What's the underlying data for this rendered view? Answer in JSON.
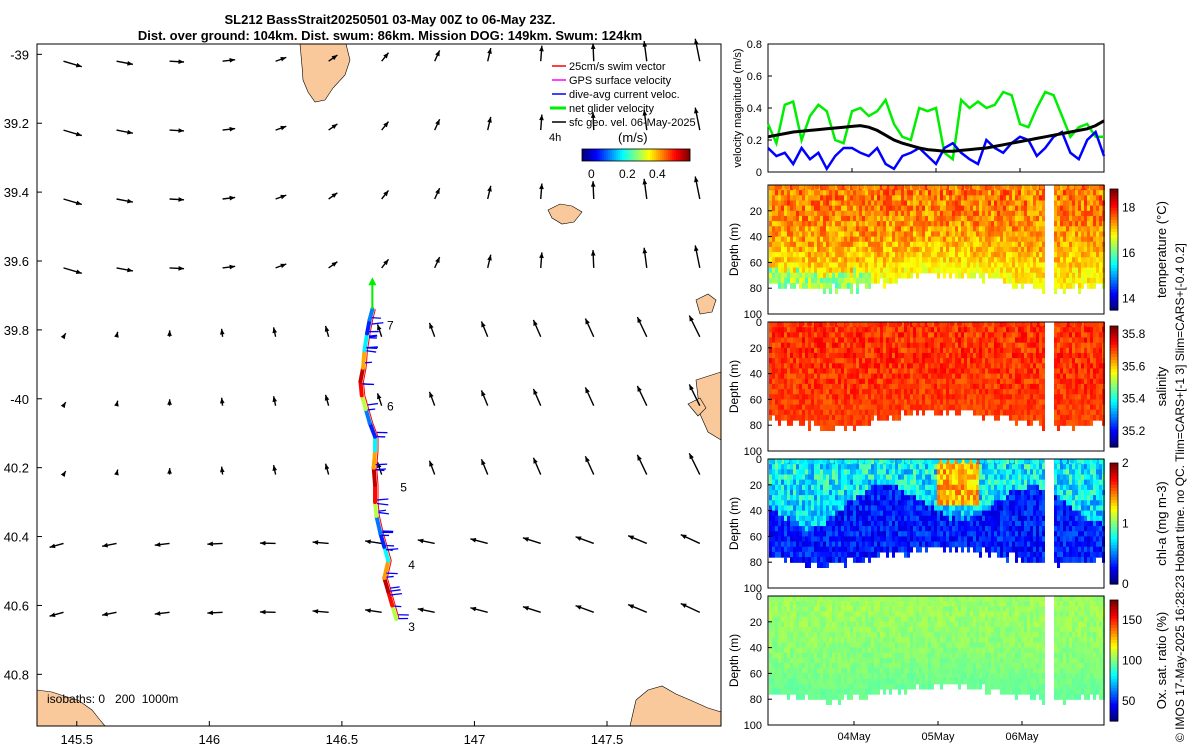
{
  "title_line1": "SL212 BassStrait20250501 03-May 00Z to 06-May 23Z.",
  "title_line2": "Dist. over ground: 104km. Dist. swum: 86km. Mission DOG: 149km. Swum: 124km",
  "side_note": "© IMOS 17-May-2025 16:28:23 Hobart time. no QC. Tlim=CARS+[-1 3] Slim=CARS+[-0.4 0.2]",
  "colors": {
    "land": "#f9c89b",
    "swim": "#ff0000",
    "gps": "#ff00ff",
    "dive": "#0000ff",
    "net": "#00ee00",
    "sfc": "#000000",
    "speed": "#000000"
  },
  "chart_data": [
    {
      "type": "scatter",
      "name": "map",
      "xlim": [
        145.35,
        147.93
      ],
      "ylim": [
        -40.95,
        -38.97
      ],
      "x_ticks": [
        145.5,
        146,
        146.5,
        147,
        147.5
      ],
      "x_tick_labels": [
        "145.5",
        "146",
        "146.5",
        "147",
        "147.5"
      ],
      "y_ticks": [
        -39,
        -39.2,
        -39.4,
        -39.6,
        -39.8,
        -40,
        -40.2,
        -40.4,
        -40.6,
        -40.8
      ],
      "y_tick_labels": [
        "-39",
        "39.2",
        "39.4",
        "39.6",
        "39.8",
        "-40",
        "40.2",
        "40.4",
        "40.6",
        "40.8"
      ],
      "legend": [
        "25cm/s swim vector",
        "GPS surface velocity",
        "dive-avg current veloc.",
        "net glider velocity",
        "sfc geo. vel. 06-May-2025"
      ],
      "legend_placement": "top-right",
      "colorbar_label": "(m/s)",
      "colorbar_extra": "4h",
      "colorbar_tick_labels": [
        "0",
        "0.2",
        "0.4"
      ],
      "isobaths_label": "isobaths: 0   200  1000m",
      "track_day_labels": [
        {
          "label": "3",
          "lon": 146.72,
          "lat": -40.645
        },
        {
          "label": "4",
          "lon": 146.72,
          "lat": -40.465
        },
        {
          "label": "5",
          "lon": 146.69,
          "lat": -40.24
        },
        {
          "label": "6",
          "lon": 146.64,
          "lat": -40.005
        },
        {
          "label": "7",
          "lon": 146.64,
          "lat": -39.77
        }
      ],
      "track": [
        [
          146.705,
          -40.64
        ],
        [
          146.69,
          -40.6
        ],
        [
          146.675,
          -40.56
        ],
        [
          146.66,
          -40.52
        ],
        [
          146.675,
          -40.47
        ],
        [
          146.66,
          -40.43
        ],
        [
          146.645,
          -40.39
        ],
        [
          146.63,
          -40.34
        ],
        [
          146.625,
          -40.3
        ],
        [
          146.625,
          -40.25
        ],
        [
          146.62,
          -40.2
        ],
        [
          146.625,
          -40.15
        ],
        [
          146.625,
          -40.11
        ],
        [
          146.605,
          -40.07
        ],
        [
          146.59,
          -40.03
        ],
        [
          146.575,
          -39.99
        ],
        [
          146.57,
          -39.95
        ],
        [
          146.58,
          -39.91
        ],
        [
          146.585,
          -39.86
        ],
        [
          146.595,
          -39.81
        ],
        [
          146.605,
          -39.77
        ],
        [
          146.615,
          -39.74
        ]
      ],
      "sfc_vectors": [
        {
          "lat": -39.0,
          "u": [
            0.35,
            0.35,
            0.25,
            0.2,
            0.0,
            -0.1,
            -0.2,
            -0.1,
            0.0,
            0.0,
            0.0,
            0.0,
            0.0
          ]
        },
        {
          "lat": -39.2,
          "u": [
            0.4,
            0.35,
            0.3,
            0.2,
            0.1,
            0.0,
            0.0,
            0.0,
            0.0,
            0.0,
            0.0,
            0.0,
            0.0
          ]
        },
        {
          "lat": -39.4,
          "u": [
            0.25,
            0.2,
            0.15,
            0.1,
            0.0,
            -0.1,
            -0.15,
            -0.2,
            0.0,
            0.0,
            0.0,
            0.0,
            0.0
          ]
        },
        {
          "lat": -39.6,
          "u": [
            0.2,
            0.15,
            0.1,
            0.0,
            -0.1,
            -0.15,
            -0.1,
            -0.05,
            0.0,
            0.0,
            0.0,
            0.0,
            0.0
          ]
        },
        {
          "lat": -39.8,
          "u": [
            0.05,
            0.0,
            0.0,
            0.0,
            0.0,
            0.0,
            0.0,
            0.0,
            0.0,
            0.0,
            0.0,
            0.0,
            0.0
          ]
        }
      ]
    },
    {
      "type": "line",
      "name": "velocity_magnitude",
      "ylabel": "velocity magnitude (m/s)",
      "ylim": [
        0,
        0.8
      ],
      "y_ticks": [
        0,
        0.2,
        0.4,
        0.6,
        0.8
      ],
      "y_tick_labels": [
        "0",
        "0.2",
        "0.4",
        "0.6",
        "0.8"
      ],
      "x_days": [
        3.0,
        3.1,
        3.2,
        3.3,
        3.4,
        3.5,
        3.6,
        3.7,
        3.8,
        3.9,
        4.0,
        4.1,
        4.2,
        4.3,
        4.4,
        4.5,
        4.6,
        4.7,
        4.8,
        4.9,
        5.0,
        5.1,
        5.2,
        5.3,
        5.4,
        5.5,
        5.6,
        5.7,
        5.8,
        5.9,
        6.0,
        6.1,
        6.2,
        6.3,
        6.4,
        6.5,
        6.6,
        6.7,
        6.8,
        6.9,
        7.0
      ],
      "series": [
        {
          "name": "net glider velocity",
          "color": "#00ee00",
          "values": [
            0.3,
            0.18,
            0.42,
            0.44,
            0.2,
            0.35,
            0.42,
            0.38,
            0.2,
            0.18,
            0.38,
            0.4,
            0.35,
            0.38,
            0.45,
            0.3,
            0.22,
            0.2,
            0.4,
            0.38,
            0.4,
            0.12,
            0.08,
            0.45,
            0.4,
            0.44,
            0.4,
            0.42,
            0.5,
            0.48,
            0.3,
            0.28,
            0.4,
            0.5,
            0.48,
            0.35,
            0.22,
            0.28,
            0.3,
            0.22,
            0.22
          ]
        },
        {
          "name": "dive-avg current",
          "color": "#0000ff",
          "values": [
            0.15,
            0.1,
            0.12,
            0.05,
            0.15,
            0.08,
            0.12,
            0.02,
            0.1,
            0.15,
            0.15,
            0.12,
            0.1,
            0.15,
            0.05,
            0.02,
            0.1,
            0.12,
            0.15,
            0.1,
            0.05,
            0.15,
            0.18,
            0.12,
            0.08,
            0.05,
            0.2,
            0.15,
            0.12,
            0.18,
            0.22,
            0.2,
            0.1,
            0.15,
            0.22,
            0.25,
            0.12,
            0.08,
            0.2,
            0.25,
            0.1
          ]
        },
        {
          "name": "speed",
          "color": "#000000",
          "values": [
            0.22,
            0.23,
            0.24,
            0.25,
            0.255,
            0.26,
            0.265,
            0.27,
            0.275,
            0.28,
            0.285,
            0.29,
            0.28,
            0.26,
            0.23,
            0.2,
            0.18,
            0.165,
            0.15,
            0.14,
            0.135,
            0.13,
            0.13,
            0.135,
            0.14,
            0.145,
            0.15,
            0.16,
            0.17,
            0.18,
            0.19,
            0.2,
            0.21,
            0.22,
            0.23,
            0.24,
            0.25,
            0.26,
            0.27,
            0.29,
            0.32
          ]
        }
      ]
    },
    {
      "type": "heatmap",
      "name": "temperature",
      "ylabel": "Depth (m)",
      "colorbar_label": "temperature (°C)",
      "clim": [
        13.5,
        18.8
      ],
      "cbar_ticks": [
        14,
        16,
        18
      ],
      "cbar_tick_labels": [
        "14",
        "16",
        "18"
      ],
      "base_value": 17.5,
      "noise": 0.5,
      "bottom_value": 16.0,
      "ylim": [
        100,
        0
      ],
      "y_ticks": [
        0,
        20,
        40,
        60,
        80,
        100
      ],
      "y_tick_labels": [
        "",
        "20",
        "40",
        "60",
        "80",
        "100"
      ]
    },
    {
      "type": "heatmap",
      "name": "salinity",
      "ylabel": "Depth (m)",
      "colorbar_label": "salinity",
      "clim": [
        35.1,
        35.85
      ],
      "cbar_ticks": [
        35.2,
        35.4,
        35.6,
        35.8
      ],
      "cbar_tick_labels": [
        "35.2",
        "35.4",
        "35.6",
        "35.8"
      ],
      "base_value": 35.72,
      "noise": 0.05,
      "bottom_value": 35.7,
      "ylim": [
        100,
        0
      ],
      "y_ticks": [
        0,
        20,
        40,
        60,
        80,
        100
      ],
      "y_tick_labels": [
        "0",
        "20",
        "40",
        "60",
        "80",
        "100"
      ]
    },
    {
      "type": "heatmap",
      "name": "chlorophyll",
      "ylabel": "Depth (m)",
      "colorbar_label": "chl-a (mg m-3)",
      "clim": [
        0,
        2
      ],
      "cbar_ticks": [
        0,
        1,
        2
      ],
      "cbar_tick_labels": [
        "0",
        "1",
        "2"
      ],
      "base_value": 0.75,
      "noise": 0.25,
      "bottom_value": 0.15,
      "ylim": [
        100,
        0
      ],
      "y_ticks": [
        0,
        20,
        40,
        60,
        80,
        100
      ],
      "y_tick_labels": [
        "0",
        "20",
        "40",
        "60",
        "80",
        "100"
      ]
    },
    {
      "type": "heatmap",
      "name": "oxygen",
      "ylabel": "Depth (m)",
      "colorbar_label": "Ox. sat. ratio (%)",
      "clim": [
        25,
        175
      ],
      "cbar_ticks": [
        50,
        100,
        150
      ],
      "cbar_tick_labels": [
        "50",
        "100",
        "150"
      ],
      "base_value": 104,
      "noise": 5,
      "bottom_value": 88,
      "ylim": [
        100,
        0
      ],
      "y_ticks": [
        0,
        20,
        40,
        60,
        80,
        100
      ],
      "y_tick_labels": [
        "0",
        "20",
        "40",
        "60",
        "80",
        "100"
      ],
      "x_ticks": [
        4,
        5,
        6
      ],
      "x_tick_labels": [
        "04May",
        "05May",
        "06May"
      ]
    }
  ]
}
